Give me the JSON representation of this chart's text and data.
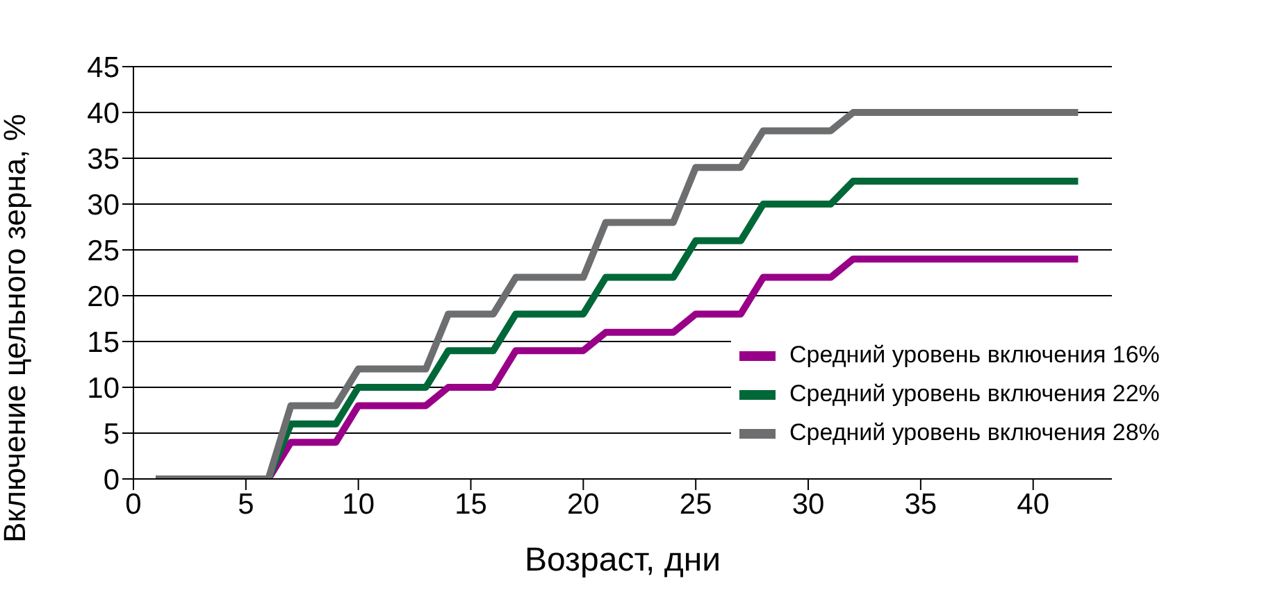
{
  "chart_data": {
    "type": "line",
    "xlabel": "Возраст, дни",
    "ylabel": "Включение цельного зерна, %",
    "x": [
      1,
      6,
      7,
      9,
      10,
      13,
      14,
      16,
      17,
      20,
      21,
      24,
      25,
      27,
      28,
      31,
      32,
      42
    ],
    "series": [
      {
        "name": "Средний уровень включения 16%",
        "color": "#990088",
        "values": [
          0,
          0,
          4,
          4,
          8,
          8,
          10,
          10,
          14,
          14,
          16,
          16,
          18,
          18,
          22,
          22,
          24,
          24
        ]
      },
      {
        "name": "Средний уровень включения 22%",
        "color": "#006838",
        "values": [
          0,
          0,
          6,
          6,
          10,
          10,
          14,
          14,
          18,
          18,
          22,
          22,
          26,
          26,
          30,
          30,
          32.5,
          32.5
        ]
      },
      {
        "name": "Средний уровень включения 28%",
        "color": "#6d6e70",
        "values": [
          0,
          0,
          8,
          8,
          12,
          12,
          18,
          18,
          22,
          22,
          28,
          28,
          34,
          34,
          38,
          38,
          40,
          40
        ]
      }
    ],
    "xlim": [
      0,
      43.5
    ],
    "xticks": [
      0,
      5,
      10,
      15,
      20,
      25,
      30,
      35,
      40
    ],
    "ylim": [
      0,
      45
    ],
    "yticks": [
      0,
      5,
      10,
      15,
      20,
      25,
      30,
      35,
      40,
      45
    ],
    "grid": "y",
    "legend": "bottom right",
    "marker": "none",
    "line_style": "solid"
  }
}
